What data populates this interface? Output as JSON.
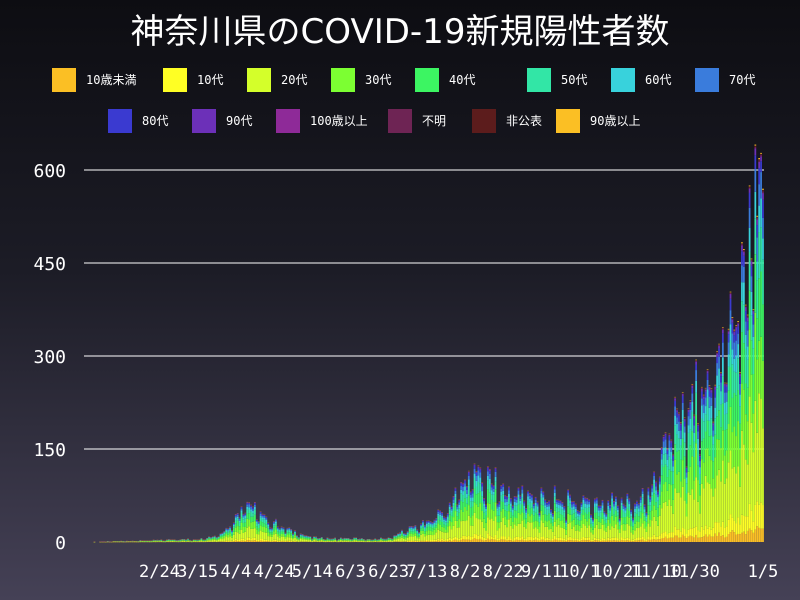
{
  "title": "神奈川県のCOVID-19新規陽性者数",
  "legend": [
    {
      "label": "10歳未満",
      "color": "#fbbf24"
    },
    {
      "label": "10代",
      "color": "#ffff24"
    },
    {
      "label": "20代",
      "color": "#d4ff2a"
    },
    {
      "label": "30代",
      "color": "#7cff32"
    },
    {
      "label": "40代",
      "color": "#3cf562"
    },
    {
      "label": "50代",
      "color": "#32e6a6"
    },
    {
      "label": "60代",
      "color": "#38d2dc"
    },
    {
      "label": "70代",
      "color": "#3a7cdc"
    },
    {
      "label": "80代",
      "color": "#3a3ad0"
    },
    {
      "label": "90代",
      "color": "#6c30b8"
    },
    {
      "label": "100歳以上",
      "color": "#8e2a98"
    },
    {
      "label": "不明",
      "color": "#6e2454"
    },
    {
      "label": "非公表",
      "color": "#5c1c1c"
    },
    {
      "label": "90歳以上",
      "color": "#fbbf24"
    }
  ],
  "chart_data": {
    "type": "bar",
    "stacked": true,
    "y_ticks": [
      "0",
      "150",
      "300",
      "450",
      "600"
    ],
    "x_ticks": [
      "2/24",
      "3/15",
      "4/4",
      "4/24",
      "5/14",
      "6/3",
      "6/23",
      "7/13",
      "8/2",
      "8/22",
      "9/11",
      "10/1",
      "10/21",
      "11/10",
      "11/30",
      "1/5"
    ],
    "ylim": [
      0,
      620
    ],
    "grid": true,
    "series_order": [
      "10歳未満",
      "10代",
      "20代",
      "30代",
      "40代",
      "50代",
      "60代",
      "70代",
      "80代",
      "90代",
      "100歳以上",
      "不明",
      "非公表",
      "90歳以上"
    ],
    "daily_totals_keypoints": [
      [
        "1/16",
        0
      ],
      [
        "1/29",
        1
      ],
      [
        "2/14",
        2
      ],
      [
        "2/24",
        3
      ],
      [
        "3/5",
        4
      ],
      [
        "3/15",
        4
      ],
      [
        "3/25",
        10
      ],
      [
        "4/1",
        25
      ],
      [
        "4/6",
        50
      ],
      [
        "4/9",
        65
      ],
      [
        "4/14",
        50
      ],
      [
        "4/20",
        35
      ],
      [
        "4/24",
        30
      ],
      [
        "5/1",
        20
      ],
      [
        "5/8",
        12
      ],
      [
        "5/14",
        8
      ],
      [
        "5/24",
        5
      ],
      [
        "6/3",
        6
      ],
      [
        "6/13",
        4
      ],
      [
        "6/23",
        6
      ],
      [
        "6/30",
        15
      ],
      [
        "7/13",
        30
      ],
      [
        "7/25",
        55
      ],
      [
        "8/2",
        100
      ],
      [
        "8/8",
        110
      ],
      [
        "8/15",
        95
      ],
      [
        "8/22",
        80
      ],
      [
        "9/1",
        75
      ],
      [
        "9/11",
        70
      ],
      [
        "9/21",
        60
      ],
      [
        "10/1",
        65
      ],
      [
        "10/11",
        60
      ],
      [
        "10/21",
        70
      ],
      [
        "10/31",
        60
      ],
      [
        "11/5",
        70
      ],
      [
        "11/10",
        100
      ],
      [
        "11/15",
        150
      ],
      [
        "11/20",
        190
      ],
      [
        "11/25",
        210
      ],
      [
        "11/30",
        200
      ],
      [
        "12/5",
        220
      ],
      [
        "12/10",
        250
      ],
      [
        "12/15",
        280
      ],
      [
        "12/20",
        330
      ],
      [
        "12/25",
        420
      ],
      [
        "12/28",
        450
      ],
      [
        "12/31",
        500
      ],
      [
        "1/3",
        570
      ],
      [
        "1/5",
        610
      ]
    ]
  }
}
